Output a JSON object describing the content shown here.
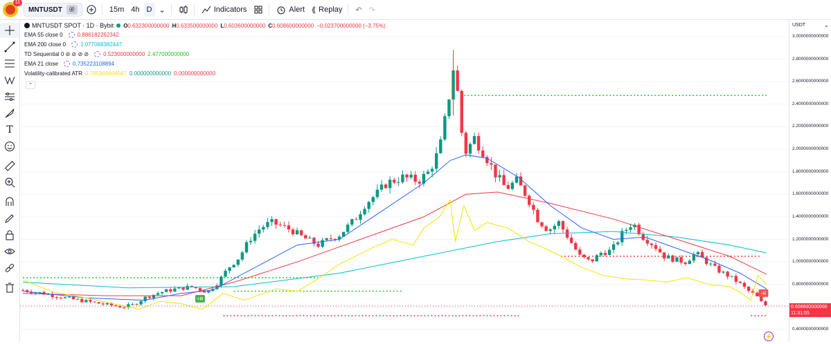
{
  "topbar": {
    "notification_count": "11",
    "symbol": "MNTUSDT",
    "symbol_badge": "ⓔ",
    "intervals": [
      "15m",
      "4h",
      "D"
    ],
    "indicators_label": "Indicators",
    "alert_label": "Alert",
    "replay_label": "Replay"
  },
  "legend": {
    "title": "MNTUSDT SPOT · 1D · Bybit",
    "open_label": "O",
    "open": "0.632300000000",
    "high_label": "H",
    "high": "0.633500000000",
    "low_label": "L",
    "low": "0.603600000000",
    "close_label": "C",
    "close": "0.608600000000",
    "change": "−0.023700000000 (−3.75%)",
    "indicators": [
      {
        "name": "EMA 55 close 0",
        "values": [
          "0.886182262342"
        ],
        "colors": [
          "#f23645"
        ]
      },
      {
        "name": "EMA 200 close 0",
        "values": [
          "1.077068382447"
        ],
        "colors": [
          "#00bcd4"
        ]
      },
      {
        "name": "TD Sequential 0 ⊘ ⊘ ⊘ ⊘",
        "values": [
          "0.523000000000",
          "2.477000000000"
        ],
        "colors": [
          "#f23645",
          "#1ec81e"
        ]
      },
      {
        "name": "EMA 21 close",
        "values": [
          "0.735223108894"
        ],
        "colors": [
          "#2962ff"
        ]
      },
      {
        "name": "Volatility-calibrated ATR",
        "values": [
          "0.795369404567",
          "0.000000000000",
          "0.000000000000"
        ],
        "colors": [
          "#f5e300",
          "#089981",
          "#f23645"
        ]
      }
    ]
  },
  "axis": {
    "currency": "USDT",
    "ticks": [
      "3.0000000000000",
      "2.8000000000000",
      "2.6000000000000",
      "2.4000000000000",
      "2.2000000000000",
      "2.0000000000000",
      "1.8000000000000",
      "1.6000000000000",
      "1.4000000000000",
      "1.2000000000000",
      "1.0000000000000",
      "0.8000000000000",
      "0.6000000000000",
      "0.4000000000000"
    ],
    "last_price": "0.608600000000",
    "countdown": "11:31:55"
  },
  "markers": {
    "buy_label": "+R",
    "sell_label": "-R"
  },
  "colors": {
    "up": "#089981",
    "down": "#f23645",
    "ema21": "#2962ff",
    "ema55": "#f23645",
    "ema200": "#00bcd4",
    "atr": "#f5e300",
    "td_support": "#f23645",
    "td_resistance": "#1ec81e"
  },
  "chart_data": {
    "type": "candlestick",
    "title": "MNTUSDT SPOT · 1D · Bybit",
    "ylim": [
      0.4,
      3.0
    ],
    "anchors": [
      [
        0,
        0.75
      ],
      [
        20,
        0.72
      ],
      [
        40,
        0.68
      ],
      [
        60,
        0.65
      ],
      [
        80,
        0.62
      ],
      [
        95,
        0.6
      ],
      [
        105,
        0.62
      ],
      [
        115,
        0.68
      ],
      [
        130,
        0.73
      ],
      [
        145,
        0.76
      ],
      [
        160,
        0.78
      ],
      [
        170,
        0.75
      ],
      [
        175,
        0.73
      ],
      [
        185,
        0.82
      ],
      [
        195,
        0.95
      ],
      [
        205,
        1.04
      ],
      [
        215,
        1.2
      ],
      [
        225,
        1.3
      ],
      [
        235,
        1.35
      ],
      [
        245,
        1.32
      ],
      [
        255,
        1.28
      ],
      [
        265,
        1.22
      ],
      [
        280,
        1.15
      ],
      [
        290,
        1.2
      ],
      [
        300,
        1.24
      ],
      [
        315,
        1.38
      ],
      [
        325,
        1.52
      ],
      [
        335,
        1.6
      ],
      [
        345,
        1.7
      ],
      [
        360,
        1.75
      ],
      [
        375,
        1.72
      ],
      [
        385,
        1.8
      ],
      [
        395,
        2.0
      ],
      [
        402,
        2.35
      ],
      [
        408,
        2.72
      ],
      [
        413,
        2.45
      ],
      [
        418,
        1.95
      ],
      [
        428,
        2.1
      ],
      [
        438,
        1.95
      ],
      [
        448,
        1.78
      ],
      [
        458,
        1.65
      ],
      [
        468,
        1.72
      ],
      [
        478,
        1.58
      ],
      [
        488,
        1.38
      ],
      [
        498,
        1.28
      ],
      [
        508,
        1.35
      ],
      [
        518,
        1.2
      ],
      [
        528,
        1.05
      ],
      [
        538,
        1.0
      ],
      [
        548,
        1.08
      ],
      [
        558,
        1.1
      ],
      [
        568,
        1.25
      ],
      [
        578,
        1.35
      ],
      [
        588,
        1.22
      ],
      [
        598,
        1.15
      ],
      [
        608,
        1.05
      ],
      [
        618,
        1.02
      ],
      [
        628,
        1.0
      ],
      [
        638,
        1.08
      ],
      [
        648,
        1.0
      ],
      [
        658,
        0.93
      ],
      [
        668,
        0.88
      ],
      [
        678,
        0.82
      ],
      [
        688,
        0.74
      ],
      [
        695,
        0.7
      ],
      [
        701,
        0.63
      ],
      [
        705,
        0.61
      ]
    ],
    "overlays": {
      "ema21": [
        [
          0,
          0.74
        ],
        [
          60,
          0.68
        ],
        [
          115,
          0.66
        ],
        [
          150,
          0.72
        ],
        [
          180,
          0.75
        ],
        [
          220,
          0.95
        ],
        [
          260,
          1.15
        ],
        [
          300,
          1.2
        ],
        [
          340,
          1.45
        ],
        [
          380,
          1.7
        ],
        [
          405,
          1.9
        ],
        [
          420,
          1.95
        ],
        [
          440,
          1.92
        ],
        [
          470,
          1.75
        ],
        [
          500,
          1.5
        ],
        [
          530,
          1.3
        ],
        [
          560,
          1.2
        ],
        [
          590,
          1.22
        ],
        [
          620,
          1.12
        ],
        [
          650,
          1.02
        ],
        [
          680,
          0.9
        ],
        [
          705,
          0.76
        ]
      ],
      "ema55": [
        [
          0,
          0.72
        ],
        [
          80,
          0.7
        ],
        [
          150,
          0.7
        ],
        [
          200,
          0.82
        ],
        [
          260,
          1.0
        ],
        [
          320,
          1.2
        ],
        [
          380,
          1.4
        ],
        [
          420,
          1.6
        ],
        [
          450,
          1.62
        ],
        [
          500,
          1.52
        ],
        [
          560,
          1.38
        ],
        [
          620,
          1.2
        ],
        [
          670,
          1.05
        ],
        [
          705,
          0.89
        ]
      ],
      "ema200": [
        [
          0,
          0.82
        ],
        [
          100,
          0.77
        ],
        [
          200,
          0.78
        ],
        [
          300,
          0.9
        ],
        [
          380,
          1.05
        ],
        [
          450,
          1.18
        ],
        [
          500,
          1.25
        ],
        [
          560,
          1.27
        ],
        [
          620,
          1.22
        ],
        [
          670,
          1.15
        ],
        [
          705,
          1.08
        ]
      ],
      "atr": [
        [
          0,
          0.84
        ],
        [
          30,
          0.73
        ],
        [
          60,
          0.68
        ],
        [
          90,
          0.62
        ],
        [
          110,
          0.58
        ],
        [
          130,
          0.65
        ],
        [
          150,
          0.63
        ],
        [
          170,
          0.58
        ],
        [
          190,
          0.72
        ],
        [
          210,
          0.66
        ],
        [
          240,
          0.76
        ],
        [
          260,
          0.74
        ],
        [
          280,
          0.85
        ],
        [
          300,
          0.98
        ],
        [
          330,
          1.12
        ],
        [
          350,
          1.2
        ],
        [
          370,
          1.15
        ],
        [
          380,
          1.3
        ],
        [
          395,
          1.4
        ],
        [
          405,
          1.55
        ],
        [
          410,
          1.18
        ],
        [
          418,
          1.5
        ],
        [
          428,
          1.28
        ],
        [
          440,
          1.35
        ],
        [
          460,
          1.3
        ],
        [
          480,
          1.18
        ],
        [
          495,
          1.12
        ],
        [
          510,
          1.05
        ],
        [
          530,
          0.95
        ],
        [
          550,
          0.88
        ],
        [
          570,
          0.85
        ],
        [
          590,
          0.84
        ],
        [
          610,
          0.82
        ],
        [
          630,
          0.86
        ],
        [
          650,
          0.8
        ],
        [
          670,
          0.78
        ],
        [
          680,
          0.73
        ],
        [
          690,
          0.66
        ],
        [
          697,
          0.88
        ],
        [
          705,
          0.8
        ]
      ]
    },
    "levels": [
      {
        "price": 2.477,
        "x_start": 415,
        "x_end": 705,
        "color": "#1ec81e"
      },
      {
        "price": 0.86,
        "x_start": 0,
        "x_end": 280,
        "color": "#1ec81e"
      },
      {
        "price": 0.74,
        "x_start": 200,
        "x_end": 360,
        "color": "#1ec81e"
      },
      {
        "price": 0.523,
        "x_start": 190,
        "x_end": 470,
        "color": "#f23645"
      },
      {
        "price": 0.523,
        "x_start": 690,
        "x_end": 705,
        "color": "#f23645"
      },
      {
        "price": 1.05,
        "x_start": 510,
        "x_end": 700,
        "color": "#f23645"
      }
    ]
  }
}
